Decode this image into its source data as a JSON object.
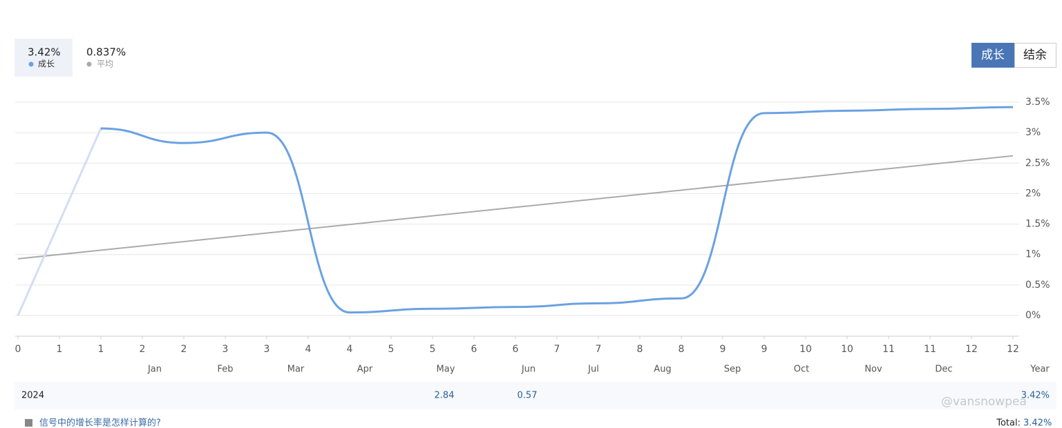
{
  "tabs": [
    {
      "value": "3.42%",
      "label": "成长"
    },
    {
      "value": "0.837%",
      "label": "平均"
    }
  ],
  "buttons": [
    "成长",
    "结余"
  ],
  "chart_data": {
    "type": "line",
    "series": [
      {
        "name": "成长",
        "color": "#6aa1e2",
        "first_segment_color": "#d3ddf3",
        "x": [
          0,
          2,
          4,
          6,
          8,
          10,
          12,
          14,
          16,
          18,
          20,
          22,
          24
        ],
        "values": [
          0,
          3.07,
          2.83,
          3.0,
          0.05,
          0.11,
          0.14,
          0.2,
          0.28,
          3.32,
          3.36,
          3.39,
          3.42
        ]
      },
      {
        "name": "平均",
        "color": "#aaaaaa",
        "x": [
          0,
          24
        ],
        "values": [
          0.93,
          2.62
        ]
      }
    ],
    "xlim": [
      0,
      24
    ],
    "xticks": [
      {
        "value": 0,
        "label": "0"
      },
      {
        "value": 1,
        "label": "1"
      },
      {
        "value": 2,
        "label": "1"
      },
      {
        "value": 3,
        "label": "2"
      },
      {
        "value": 4,
        "label": "2"
      },
      {
        "value": 5,
        "label": "3"
      },
      {
        "value": 6,
        "label": "3"
      },
      {
        "value": 7,
        "label": "4"
      },
      {
        "value": 8,
        "label": "4"
      },
      {
        "value": 9,
        "label": "5"
      },
      {
        "value": 10,
        "label": "5"
      },
      {
        "value": 11,
        "label": "6"
      },
      {
        "value": 12,
        "label": "6"
      },
      {
        "value": 13,
        "label": "7"
      },
      {
        "value": 14,
        "label": "7"
      },
      {
        "value": 15,
        "label": "8"
      },
      {
        "value": 16,
        "label": "8"
      },
      {
        "value": 17,
        "label": "9"
      },
      {
        "value": 18,
        "label": "9"
      },
      {
        "value": 19,
        "label": "10"
      },
      {
        "value": 20,
        "label": "10"
      },
      {
        "value": 21,
        "label": "11"
      },
      {
        "value": 22,
        "label": "11"
      },
      {
        "value": 23,
        "label": "12"
      },
      {
        "value": 24,
        "label": "12"
      }
    ],
    "ylim": [
      -0.34,
      3.5
    ],
    "yticks": [
      {
        "value": 0,
        "label": "0%"
      },
      {
        "value": 0.5,
        "label": "0.5%"
      },
      {
        "value": 1,
        "label": "1%"
      },
      {
        "value": 1.5,
        "label": "1.5%"
      },
      {
        "value": 2,
        "label": "2%"
      },
      {
        "value": 2.5,
        "label": "2.5%"
      },
      {
        "value": 3,
        "label": "3%"
      },
      {
        "value": 3.5,
        "label": "3.5%"
      }
    ],
    "grid": true
  },
  "table": {
    "columns": [
      "Jan",
      "Feb",
      "Mar",
      "Apr",
      "May",
      "Jun",
      "Jul",
      "Aug",
      "Sep",
      "Oct",
      "Nov",
      "Dec",
      "Year"
    ],
    "rows": [
      {
        "label": "2024",
        "values": [
          null,
          null,
          null,
          null,
          2.84,
          0.57,
          null,
          null,
          null,
          null,
          null,
          null,
          "3.42%"
        ]
      }
    ]
  },
  "footer": {
    "link": "信号中的增长率是怎样计算的?",
    "total_label": "Total:",
    "total_value": "3.42%"
  },
  "watermark": "@vansnowpea"
}
